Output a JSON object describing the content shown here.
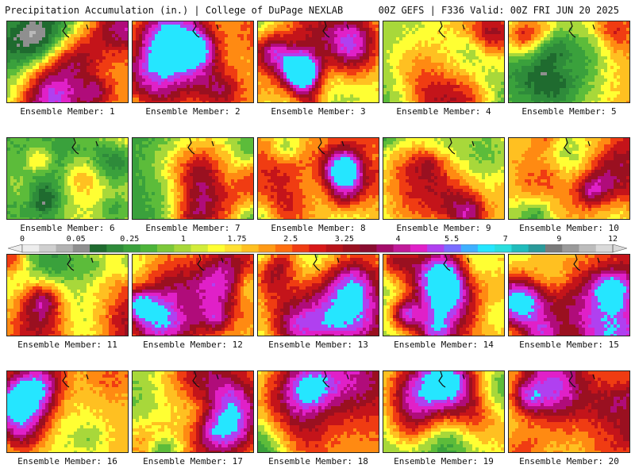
{
  "header": {
    "left": "Precipitation Accumulation (in.) | College of DuPage NEXLAB",
    "right": "00Z GEFS | F336 Valid: 00Z FRI JUN 20 2025"
  },
  "colorbar": {
    "labels": [
      "0",
      "0.05",
      "0.25",
      "1",
      "1.75",
      "2.5",
      "3.25",
      "4",
      "5.5",
      "7",
      "9",
      "12"
    ],
    "colors": [
      "#ededed",
      "#cfcfcf",
      "#b2b2b2",
      "#8f8f8f",
      "#1f6b2f",
      "#2e8b3a",
      "#3aa13c",
      "#4cb43a",
      "#7cc83a",
      "#a8d83a",
      "#d2ec3a",
      "#ffff33",
      "#ffe033",
      "#ffc021",
      "#ff9a15",
      "#ff6e10",
      "#f03c12",
      "#d81818",
      "#b8121a",
      "#9a1020",
      "#8a0c30",
      "#a40c6a",
      "#c01a9a",
      "#e020c8",
      "#b040f0",
      "#7a6cff",
      "#3fb0ff",
      "#25e6ff",
      "#2adede",
      "#20bcbc",
      "#2a9a9a",
      "#7a7a7a",
      "#9a9a9a",
      "#bcbcbc",
      "#dadada"
    ]
  },
  "members": [
    {
      "caption": "Ensemble Member: 1",
      "seed": 11,
      "bias": 0.55
    },
    {
      "caption": "Ensemble Member: 2",
      "seed": 23,
      "bias": 0.55
    },
    {
      "caption": "Ensemble Member: 3",
      "seed": 37,
      "bias": 0.25
    },
    {
      "caption": "Ensemble Member: 4",
      "seed": 41,
      "bias": 0.45
    },
    {
      "caption": "Ensemble Member: 5",
      "seed": 53,
      "bias": 0.5
    },
    {
      "caption": "Ensemble Member: 6",
      "seed": 67,
      "bias": 0.35
    },
    {
      "caption": "Ensemble Member: 7",
      "seed": 71,
      "bias": 0.15
    },
    {
      "caption": "Ensemble Member: 8",
      "seed": 83,
      "bias": 0.65
    },
    {
      "caption": "Ensemble Member: 9",
      "seed": 97,
      "bias": 0.4
    },
    {
      "caption": "Ensemble Member: 10",
      "seed": 101,
      "bias": 0.7
    },
    {
      "caption": "Ensemble Member: 11",
      "seed": 113,
      "bias": 0.5
    },
    {
      "caption": "Ensemble Member: 12",
      "seed": 127,
      "bias": 0.5
    },
    {
      "caption": "Ensemble Member: 13",
      "seed": 131,
      "bias": 0.35
    },
    {
      "caption": "Ensemble Member: 14",
      "seed": 149,
      "bias": 0.45
    },
    {
      "caption": "Ensemble Member: 15",
      "seed": 151,
      "bias": 0.6
    },
    {
      "caption": "Ensemble Member: 16",
      "seed": 163,
      "bias": 0.45
    },
    {
      "caption": "Ensemble Member: 17",
      "seed": 173,
      "bias": 0.55
    },
    {
      "caption": "Ensemble Member: 18",
      "seed": 181,
      "bias": 0.55
    },
    {
      "caption": "Ensemble Member: 19",
      "seed": 191,
      "bias": 0.3
    },
    {
      "caption": "Ensemble Member: 20",
      "seed": 197,
      "bias": 0.7
    }
  ]
}
